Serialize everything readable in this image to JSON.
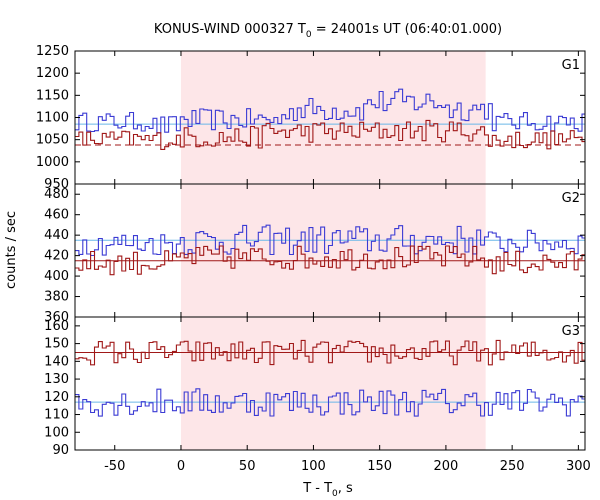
{
  "chart_data": {
    "type": "line",
    "title": {
      "prefix": "KONUS-WIND 000327 T",
      "sub": "0",
      "suffix": " = 24001s UT (06:40:01.000)"
    },
    "xlabel": {
      "prefix": "T - T",
      "sub": "0",
      "suffix": ", s"
    },
    "ylabel": "counts / sec",
    "xlim": [
      -80,
      305
    ],
    "xticks": [
      -50,
      0,
      50,
      100,
      150,
      200,
      250,
      300
    ],
    "shaded_interval": [
      0,
      230
    ],
    "grid": false,
    "bin_width": 2.944,
    "panels": [
      {
        "name": "G1",
        "ylim": [
          950,
          1250
        ],
        "yticks": [
          950,
          1000,
          1050,
          1100,
          1150,
          1200,
          1250
        ],
        "series": [
          {
            "color": "#3b3bd4",
            "background_level": 1085,
            "segments": [
              {
                "from": -80,
                "to": -20,
                "mean": 1090,
                "amp": 22
              },
              {
                "from": -20,
                "to": 0,
                "mean": 1080,
                "amp": 25
              },
              {
                "from": 0,
                "to": 80,
                "mean": 1095,
                "amp": 25
              },
              {
                "from": 80,
                "to": 140,
                "mean": 1118,
                "amp": 28
              },
              {
                "from": 140,
                "to": 200,
                "mean": 1135,
                "amp": 30
              },
              {
                "from": 200,
                "to": 235,
                "mean": 1120,
                "amp": 28
              },
              {
                "from": 235,
                "to": 305,
                "mean": 1090,
                "amp": 22
              }
            ]
          },
          {
            "color": "#a01818",
            "background_level": 1038,
            "segments": [
              {
                "from": -80,
                "to": 0,
                "mean": 1050,
                "amp": 22
              },
              {
                "from": 0,
                "to": 60,
                "mean": 1055,
                "amp": 25
              },
              {
                "from": 60,
                "to": 150,
                "mean": 1068,
                "amp": 25
              },
              {
                "from": 150,
                "to": 230,
                "mean": 1070,
                "amp": 25
              },
              {
                "from": 230,
                "to": 305,
                "mean": 1050,
                "amp": 22
              }
            ]
          }
        ]
      },
      {
        "name": "G2",
        "ylim": [
          360,
          490
        ],
        "yticks": [
          360,
          380,
          400,
          420,
          440,
          460,
          480
        ],
        "series": [
          {
            "color": "#3b3bd4",
            "background_level": 435,
            "segments": [
              {
                "from": -80,
                "to": 0,
                "mean": 432,
                "amp": 12
              },
              {
                "from": 0,
                "to": 230,
                "mean": 435,
                "amp": 15
              },
              {
                "from": 230,
                "to": 305,
                "mean": 433,
                "amp": 12
              }
            ]
          },
          {
            "color": "#a01818",
            "background_level": 415,
            "segments": [
              {
                "from": -80,
                "to": 0,
                "mean": 413,
                "amp": 12
              },
              {
                "from": 0,
                "to": 230,
                "mean": 418,
                "amp": 12
              },
              {
                "from": 230,
                "to": 305,
                "mean": 413,
                "amp": 12
              }
            ]
          }
        ]
      },
      {
        "name": "G3",
        "ylim": [
          90,
          165
        ],
        "yticks": [
          90,
          100,
          110,
          120,
          130,
          140,
          150,
          160
        ],
        "series": [
          {
            "color": "#a01818",
            "background_level": 145,
            "segments": [
              {
                "from": -80,
                "to": 305,
                "mean": 145,
                "amp": 7
              }
            ]
          },
          {
            "color": "#3b3bd4",
            "background_level": 117,
            "segments": [
              {
                "from": -80,
                "to": 305,
                "mean": 117,
                "amp": 8
              }
            ]
          }
        ]
      }
    ]
  }
}
